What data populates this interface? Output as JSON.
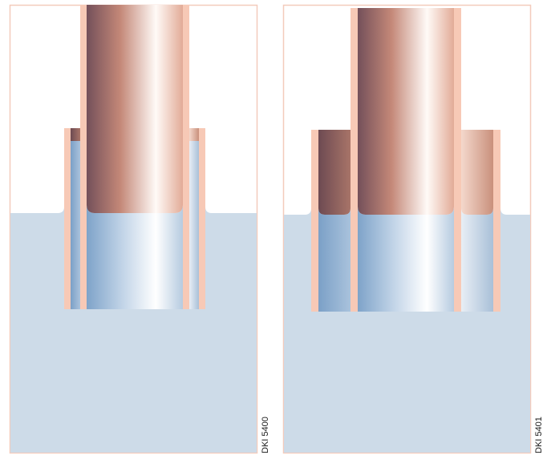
{
  "figure": {
    "panels": [
      {
        "code": "DKI 5400"
      },
      {
        "code": "DKI 5401"
      }
    ]
  },
  "colors": {
    "frame_border": "#f3cbbc",
    "liquid": "#cddbe8",
    "tube_wall": "#f7c9b6",
    "copper_dark": "#74505a",
    "copper_mid": "#c48878",
    "copper_light": "#ffffff",
    "liquid_dark": "#7da2c8",
    "liquid_light": "#ffffff"
  }
}
